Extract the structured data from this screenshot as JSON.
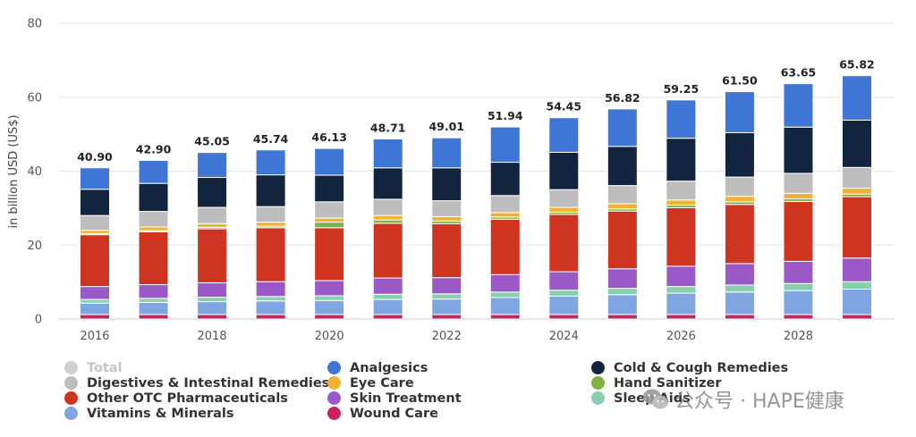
{
  "chart_data": {
    "type": "bar",
    "stacked": true,
    "ylabel": "in billion USD (US$)",
    "xlabel": "",
    "ylim": [
      0,
      80
    ],
    "yticks": [
      0,
      20,
      40,
      60,
      80
    ],
    "categories": [
      "2016",
      "2017",
      "2018",
      "2019",
      "2020",
      "2021",
      "2022",
      "2023",
      "2024",
      "2025",
      "2026",
      "2027",
      "2028",
      "2029"
    ],
    "x_tick_labels": [
      "2016",
      "2018",
      "2020",
      "2022",
      "2024",
      "2026",
      "2028"
    ],
    "totals": [
      "40.90",
      "42.90",
      "45.05",
      "45.74",
      "46.13",
      "48.71",
      "49.01",
      "51.94",
      "54.45",
      "56.82",
      "59.25",
      "61.50",
      "63.65",
      "65.82"
    ],
    "grid": true,
    "legend_position": "bottom",
    "series": [
      {
        "name": "Wound Care",
        "color": "#c8235f",
        "values": [
          1.2,
          1.2,
          1.2,
          1.2,
          1.2,
          1.2,
          1.2,
          1.2,
          1.2,
          1.2,
          1.2,
          1.2,
          1.2,
          1.2
        ]
      },
      {
        "name": "Vitamins & Minerals",
        "color": "#7fa6e0",
        "values": [
          3.1,
          3.3,
          3.5,
          3.7,
          3.8,
          4.1,
          4.2,
          4.6,
          5.0,
          5.4,
          5.8,
          6.1,
          6.5,
          6.9
        ]
      },
      {
        "name": "Sleep Aids",
        "color": "#88cfae",
        "values": [
          1.0,
          1.1,
          1.2,
          1.2,
          1.3,
          1.4,
          1.4,
          1.5,
          1.6,
          1.7,
          1.8,
          1.9,
          1.9,
          2.0
        ]
      },
      {
        "name": "Skin Treatment",
        "color": "#9b59c7",
        "values": [
          3.5,
          3.7,
          3.9,
          4.0,
          4.1,
          4.4,
          4.4,
          4.7,
          5.0,
          5.3,
          5.5,
          5.8,
          6.0,
          6.4
        ]
      },
      {
        "name": "Other OTC Pharmaceuticals",
        "color": "#cf3420",
        "values": [
          14.0,
          14.3,
          14.6,
          14.6,
          14.3,
          14.8,
          14.6,
          15.0,
          15.5,
          15.6,
          15.8,
          16.0,
          16.2,
          16.6
        ]
      },
      {
        "name": "Hand Sanitizer",
        "color": "#7cb342",
        "values": [
          0.3,
          0.3,
          0.4,
          0.4,
          1.5,
          0.9,
          0.7,
          0.6,
          0.6,
          0.6,
          0.7,
          0.7,
          0.7,
          0.7
        ]
      },
      {
        "name": "Eye Care",
        "color": "#f0b235",
        "values": [
          0.9,
          1.0,
          1.0,
          1.1,
          1.1,
          1.2,
          1.2,
          1.2,
          1.3,
          1.4,
          1.4,
          1.5,
          1.5,
          1.6
        ]
      },
      {
        "name": "Digestives & Intestinal Remedies",
        "color": "#bdbdbd",
        "values": [
          4.0,
          4.2,
          4.4,
          4.2,
          4.4,
          4.4,
          4.3,
          4.6,
          4.8,
          4.9,
          5.1,
          5.2,
          5.4,
          5.6
        ]
      },
      {
        "name": "Cold & Cough Remedies",
        "color": "#13243f",
        "values": [
          7.1,
          7.6,
          8.1,
          8.6,
          7.2,
          8.5,
          8.9,
          9.0,
          10.1,
          10.6,
          11.6,
          12.0,
          12.5,
          12.8
        ]
      },
      {
        "name": "Analgesics",
        "color": "#3f76d6",
        "values": [
          5.8,
          6.2,
          6.75,
          6.74,
          7.23,
          7.81,
          8.11,
          9.54,
          9.35,
          10.12,
          10.35,
          11.1,
          11.75,
          12.02
        ]
      }
    ]
  },
  "legend": [
    {
      "label": "Total",
      "color": "#cfcfcf",
      "muted": true
    },
    {
      "label": "Digestives & Intestinal Remedies",
      "color": "#bdbdbd",
      "muted": false
    },
    {
      "label": "Other OTC Pharmaceuticals",
      "color": "#cf3420",
      "muted": false
    },
    {
      "label": "Vitamins & Minerals",
      "color": "#7fa6e0",
      "muted": false
    },
    {
      "label": "Analgesics",
      "color": "#3f76d6",
      "muted": false
    },
    {
      "label": "Eye Care",
      "color": "#f0b235",
      "muted": false
    },
    {
      "label": "Skin Treatment",
      "color": "#9b59c7",
      "muted": false
    },
    {
      "label": "Wound Care",
      "color": "#c8235f",
      "muted": false
    },
    {
      "label": "Cold & Cough Remedies",
      "color": "#13243f",
      "muted": false
    },
    {
      "label": "Hand Sanitizer",
      "color": "#7cb342",
      "muted": false
    },
    {
      "label": "Sleep Aids",
      "color": "#88cfae",
      "muted": false
    }
  ],
  "watermark": {
    "text": "公众号 · HAPE健康"
  }
}
